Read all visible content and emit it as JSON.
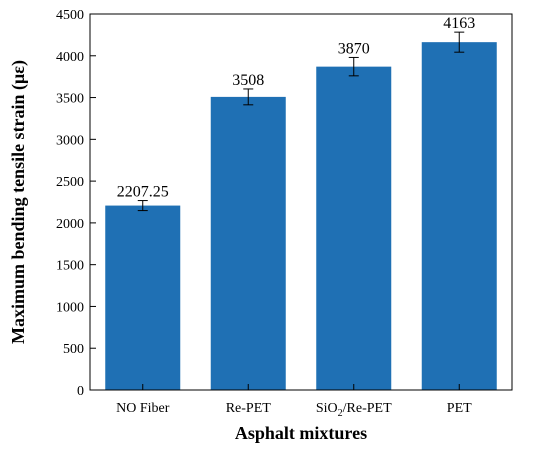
{
  "chart_data": {
    "type": "bar",
    "categories": [
      "NO Fiber",
      "Re-PET",
      "SiO2/Re-PET",
      "PET"
    ],
    "category_display": [
      {
        "base": "NO Fiber",
        "sub": "",
        "rest": ""
      },
      {
        "base": "Re-PET",
        "sub": "",
        "rest": ""
      },
      {
        "base": "SiO",
        "sub": "2",
        "rest": "/Re-PET"
      },
      {
        "base": "PET",
        "sub": "",
        "rest": ""
      }
    ],
    "values": [
      2207.25,
      3508,
      3870,
      4163
    ],
    "value_labels": [
      "2207.25",
      "3508",
      "3870",
      "4163"
    ],
    "error": [
      60,
      95,
      110,
      120
    ],
    "xlabel": "Asphalt mixtures",
    "ylabel": "Maximum bending tensile strain (με)",
    "ylim": [
      0,
      4500
    ],
    "yticks": [
      0,
      500,
      1000,
      1500,
      2000,
      2500,
      3000,
      3500,
      4000,
      4500
    ],
    "grid": false,
    "bar_color": "#1f70b4"
  }
}
